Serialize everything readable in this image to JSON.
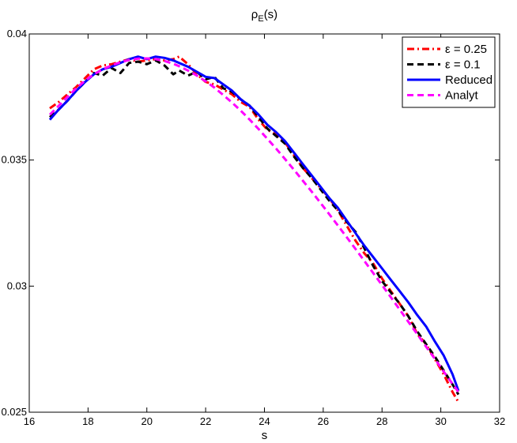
{
  "chart_data": {
    "type": "line",
    "title": "ρ",
    "title_sub": "E",
    "title_suffix": "(s)",
    "xlabel": "s",
    "ylabel": "",
    "xlim": [
      16,
      32
    ],
    "ylim": [
      0.025,
      0.04
    ],
    "xticks": [
      16,
      18,
      20,
      22,
      24,
      26,
      28,
      30,
      32
    ],
    "yticks": [
      0.025,
      0.03,
      0.035,
      0.04
    ],
    "ytick_labels": [
      "0.025",
      "0.03",
      "0.035",
      "0.04"
    ],
    "grid": false,
    "legend_position": "top-right",
    "series": [
      {
        "name": "ε = 0.25",
        "color": "#ff0000",
        "dash": "dashdot",
        "x": [
          16.7,
          17.0,
          17.3,
          17.6,
          17.9,
          18.2,
          18.5,
          18.8,
          19.1,
          19.4,
          19.7,
          20.0,
          20.3,
          20.6,
          20.9,
          21.1,
          21.4,
          21.7,
          22.0,
          22.3,
          22.6,
          22.9,
          23.2,
          23.5,
          23.8,
          24.1,
          24.4,
          24.7,
          25.0,
          25.3,
          25.6,
          25.9,
          26.2,
          26.5,
          26.8,
          27.1,
          27.4,
          27.7,
          28.0,
          28.3,
          28.6,
          28.9,
          29.2,
          29.5,
          29.8,
          30.1,
          30.4,
          30.6
        ],
        "y": [
          0.03705,
          0.0373,
          0.0376,
          0.0379,
          0.03825,
          0.0386,
          0.03875,
          0.0388,
          0.0389,
          0.039,
          0.0389,
          0.03895,
          0.039,
          0.03895,
          0.039,
          0.0391,
          0.0388,
          0.0384,
          0.0381,
          0.038,
          0.0378,
          0.0376,
          0.0373,
          0.0371,
          0.0366,
          0.0362,
          0.036,
          0.0357,
          0.0352,
          0.0347,
          0.0343,
          0.0339,
          0.0335,
          0.033,
          0.0324,
          0.0318,
          0.0313,
          0.0309,
          0.0303,
          0.0298,
          0.0293,
          0.0288,
          0.0281,
          0.0277,
          0.0271,
          0.0265,
          0.0258,
          0.0254
        ]
      },
      {
        "name": "ε = 0.1",
        "color": "#000000",
        "dash": "dashed",
        "x": [
          16.7,
          17.0,
          17.3,
          17.6,
          17.9,
          18.2,
          18.5,
          18.8,
          19.1,
          19.4,
          19.7,
          20.0,
          20.3,
          20.6,
          20.9,
          21.1,
          21.4,
          21.7,
          22.0,
          22.3,
          22.6,
          22.9,
          23.2,
          23.5,
          23.8,
          24.1,
          24.4,
          24.7,
          25.0,
          25.3,
          25.6,
          25.9,
          26.2,
          26.5,
          26.8,
          27.1,
          27.4,
          27.7,
          28.0,
          28.3,
          28.6,
          28.9,
          29.2,
          29.5,
          29.8,
          30.1,
          30.4,
          30.6
        ],
        "y": [
          0.0367,
          0.037,
          0.03735,
          0.03775,
          0.0381,
          0.03845,
          0.03835,
          0.03865,
          0.03845,
          0.03885,
          0.0389,
          0.0388,
          0.03895,
          0.03875,
          0.0384,
          0.03855,
          0.03835,
          0.0385,
          0.0382,
          0.0383,
          0.03785,
          0.0377,
          0.0374,
          0.03715,
          0.0367,
          0.03625,
          0.03595,
          0.03565,
          0.03515,
          0.0347,
          0.0343,
          0.03385,
          0.0334,
          0.033,
          0.03255,
          0.03215,
          0.0315,
          0.0308,
          0.0302,
          0.02975,
          0.0293,
          0.0288,
          0.0282,
          0.0277,
          0.0272,
          0.02665,
          0.0261,
          0.0257
        ]
      },
      {
        "name": "Reduced",
        "color": "#0000ff",
        "dash": "solid",
        "x": [
          16.7,
          17.0,
          17.3,
          17.6,
          17.9,
          18.2,
          18.5,
          18.8,
          19.1,
          19.4,
          19.7,
          20.0,
          20.3,
          20.6,
          20.9,
          21.1,
          21.4,
          21.7,
          22.0,
          22.3,
          22.6,
          22.9,
          23.2,
          23.5,
          23.8,
          24.1,
          24.4,
          24.7,
          25.0,
          25.3,
          25.6,
          25.9,
          26.2,
          26.5,
          26.8,
          27.1,
          27.4,
          27.7,
          28.0,
          28.3,
          28.6,
          28.9,
          29.2,
          29.5,
          29.8,
          30.1,
          30.4,
          30.6
        ],
        "y": [
          0.0366,
          0.037,
          0.03735,
          0.03775,
          0.0381,
          0.0384,
          0.0386,
          0.0387,
          0.03885,
          0.039,
          0.0391,
          0.039,
          0.0391,
          0.03905,
          0.03895,
          0.03885,
          0.0387,
          0.0385,
          0.0383,
          0.03825,
          0.038,
          0.03775,
          0.0374,
          0.03715,
          0.0368,
          0.0364,
          0.0361,
          0.03575,
          0.0353,
          0.03485,
          0.0344,
          0.03395,
          0.0335,
          0.0331,
          0.0326,
          0.0321,
          0.0316,
          0.03115,
          0.0307,
          0.03025,
          0.0298,
          0.02935,
          0.02885,
          0.0284,
          0.0278,
          0.02725,
          0.0265,
          0.02585
        ]
      },
      {
        "name": "Analyt",
        "color": "#ff00ff",
        "dash": "dashed",
        "x": [
          16.7,
          17.0,
          17.3,
          17.6,
          17.9,
          18.2,
          18.5,
          18.8,
          19.1,
          19.4,
          19.7,
          20.0,
          20.3,
          20.6,
          20.9,
          21.1,
          21.4,
          21.7,
          22.0,
          22.3,
          22.6,
          22.9,
          23.2,
          23.5,
          23.8,
          24.1,
          24.4,
          24.7,
          25.0,
          25.3,
          25.6,
          25.9,
          26.2,
          26.5,
          26.8,
          27.1,
          27.4,
          27.7,
          28.0,
          28.3,
          28.6,
          28.9,
          29.2,
          29.5,
          29.8,
          30.1,
          30.4,
          30.6
        ],
        "y": [
          0.0368,
          0.03715,
          0.0375,
          0.03785,
          0.03815,
          0.0384,
          0.0386,
          0.03875,
          0.03888,
          0.03897,
          0.03902,
          0.03903,
          0.039,
          0.03893,
          0.03882,
          0.03872,
          0.03855,
          0.03835,
          0.03812,
          0.03787,
          0.03758,
          0.03728,
          0.03695,
          0.0366,
          0.03623,
          0.03584,
          0.03545,
          0.03504,
          0.03462,
          0.03419,
          0.03376,
          0.03331,
          0.03286,
          0.0324,
          0.03194,
          0.03147,
          0.031,
          0.03052,
          0.03004,
          0.02956,
          0.02907,
          0.02858,
          0.02809,
          0.0276,
          0.02711,
          0.02661,
          0.02612,
          0.0258
        ]
      }
    ]
  }
}
